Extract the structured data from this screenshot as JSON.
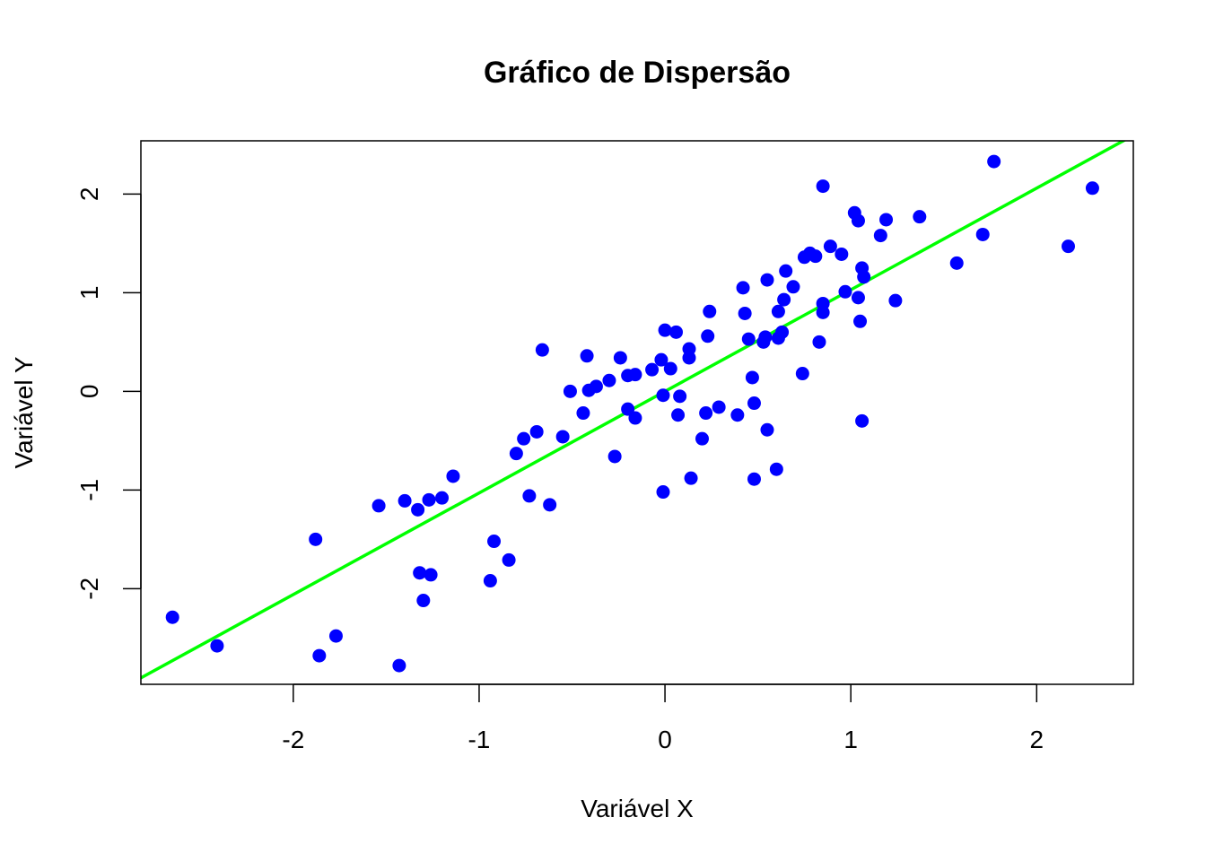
{
  "chart_data": {
    "type": "scatter",
    "title": "Gráfico de Dispersão",
    "xlabel": "Variável X",
    "ylabel": "Variável Y",
    "xlim": [
      -2.82,
      2.52
    ],
    "ylim": [
      -2.97,
      2.54
    ],
    "x_ticks": [
      -2,
      -1,
      0,
      1,
      2
    ],
    "y_ticks": [
      -2,
      -1,
      0,
      1,
      2
    ],
    "x_tick_labels": [
      "-2",
      "-1",
      "0",
      "1",
      "2"
    ],
    "y_tick_labels": [
      "-2",
      "-1",
      "0",
      "1",
      "2"
    ],
    "grid": false,
    "point_color": "#0000ff",
    "regression_line": {
      "intercept": 0.0,
      "slope": 1.03,
      "color": "#00ff00"
    },
    "points": [
      {
        "x": -2.65,
        "y": -2.29
      },
      {
        "x": -2.41,
        "y": -2.58
      },
      {
        "x": -1.88,
        "y": -1.5
      },
      {
        "x": -1.86,
        "y": -2.68
      },
      {
        "x": -1.77,
        "y": -2.48
      },
      {
        "x": -1.54,
        "y": -1.16
      },
      {
        "x": -1.43,
        "y": -2.78
      },
      {
        "x": -1.4,
        "y": -1.11
      },
      {
        "x": -1.33,
        "y": -1.2
      },
      {
        "x": -1.32,
        "y": -1.84
      },
      {
        "x": -1.3,
        "y": -2.12
      },
      {
        "x": -1.27,
        "y": -1.1
      },
      {
        "x": -1.26,
        "y": -1.86
      },
      {
        "x": -1.2,
        "y": -1.08
      },
      {
        "x": -1.14,
        "y": -0.86
      },
      {
        "x": -0.94,
        "y": -1.92
      },
      {
        "x": -0.92,
        "y": -1.52
      },
      {
        "x": -0.84,
        "y": -1.71
      },
      {
        "x": -0.8,
        "y": -0.63
      },
      {
        "x": -0.76,
        "y": -0.48
      },
      {
        "x": -0.73,
        "y": -1.06
      },
      {
        "x": -0.69,
        "y": -0.41
      },
      {
        "x": -0.66,
        "y": 0.42
      },
      {
        "x": -0.62,
        "y": -1.15
      },
      {
        "x": -0.55,
        "y": -0.46
      },
      {
        "x": -0.51,
        "y": 0.0
      },
      {
        "x": -0.44,
        "y": -0.22
      },
      {
        "x": -0.42,
        "y": 0.36
      },
      {
        "x": -0.41,
        "y": 0.01
      },
      {
        "x": -0.37,
        "y": 0.05
      },
      {
        "x": -0.3,
        "y": 0.11
      },
      {
        "x": -0.27,
        "y": -0.66
      },
      {
        "x": -0.24,
        "y": 0.34
      },
      {
        "x": -0.2,
        "y": 0.16
      },
      {
        "x": -0.2,
        "y": -0.18
      },
      {
        "x": -0.16,
        "y": 0.17
      },
      {
        "x": -0.16,
        "y": -0.27
      },
      {
        "x": -0.07,
        "y": 0.22
      },
      {
        "x": -0.02,
        "y": 0.32
      },
      {
        "x": -0.01,
        "y": -0.04
      },
      {
        "x": -0.01,
        "y": -1.02
      },
      {
        "x": 0.0,
        "y": 0.62
      },
      {
        "x": 0.03,
        "y": 0.23
      },
      {
        "x": 0.06,
        "y": 0.6
      },
      {
        "x": 0.07,
        "y": -0.24
      },
      {
        "x": 0.08,
        "y": -0.05
      },
      {
        "x": 0.13,
        "y": 0.43
      },
      {
        "x": 0.13,
        "y": 0.34
      },
      {
        "x": 0.14,
        "y": -0.88
      },
      {
        "x": 0.2,
        "y": -0.48
      },
      {
        "x": 0.22,
        "y": -0.22
      },
      {
        "x": 0.23,
        "y": 0.56
      },
      {
        "x": 0.24,
        "y": 0.81
      },
      {
        "x": 0.29,
        "y": -0.16
      },
      {
        "x": 0.39,
        "y": -0.24
      },
      {
        "x": 0.42,
        "y": 1.05
      },
      {
        "x": 0.43,
        "y": 0.79
      },
      {
        "x": 0.45,
        "y": 0.53
      },
      {
        "x": 0.47,
        "y": 0.14
      },
      {
        "x": 0.48,
        "y": -0.12
      },
      {
        "x": 0.48,
        "y": -0.89
      },
      {
        "x": 0.53,
        "y": 0.5
      },
      {
        "x": 0.54,
        "y": 0.55
      },
      {
        "x": 0.55,
        "y": 1.13
      },
      {
        "x": 0.55,
        "y": -0.39
      },
      {
        "x": 0.6,
        "y": -0.79
      },
      {
        "x": 0.61,
        "y": 0.54
      },
      {
        "x": 0.61,
        "y": 0.81
      },
      {
        "x": 0.63,
        "y": 0.6
      },
      {
        "x": 0.64,
        "y": 0.93
      },
      {
        "x": 0.65,
        "y": 1.22
      },
      {
        "x": 0.69,
        "y": 1.06
      },
      {
        "x": 0.74,
        "y": 0.18
      },
      {
        "x": 0.75,
        "y": 1.36
      },
      {
        "x": 0.78,
        "y": 1.4
      },
      {
        "x": 0.81,
        "y": 1.37
      },
      {
        "x": 0.83,
        "y": 0.5
      },
      {
        "x": 0.85,
        "y": 0.89
      },
      {
        "x": 0.85,
        "y": 0.8
      },
      {
        "x": 0.85,
        "y": 2.08
      },
      {
        "x": 0.89,
        "y": 1.47
      },
      {
        "x": 0.95,
        "y": 1.39
      },
      {
        "x": 0.97,
        "y": 1.01
      },
      {
        "x": 1.02,
        "y": 1.81
      },
      {
        "x": 1.04,
        "y": 1.73
      },
      {
        "x": 1.04,
        "y": 0.95
      },
      {
        "x": 1.05,
        "y": 0.71
      },
      {
        "x": 1.06,
        "y": -0.3
      },
      {
        "x": 1.06,
        "y": 1.25
      },
      {
        "x": 1.07,
        "y": 1.16
      },
      {
        "x": 1.16,
        "y": 1.58
      },
      {
        "x": 1.19,
        "y": 1.74
      },
      {
        "x": 1.24,
        "y": 0.92
      },
      {
        "x": 1.37,
        "y": 1.77
      },
      {
        "x": 1.57,
        "y": 1.3
      },
      {
        "x": 1.71,
        "y": 1.59
      },
      {
        "x": 1.77,
        "y": 2.33
      },
      {
        "x": 2.17,
        "y": 1.47
      },
      {
        "x": 2.3,
        "y": 2.06
      }
    ]
  }
}
